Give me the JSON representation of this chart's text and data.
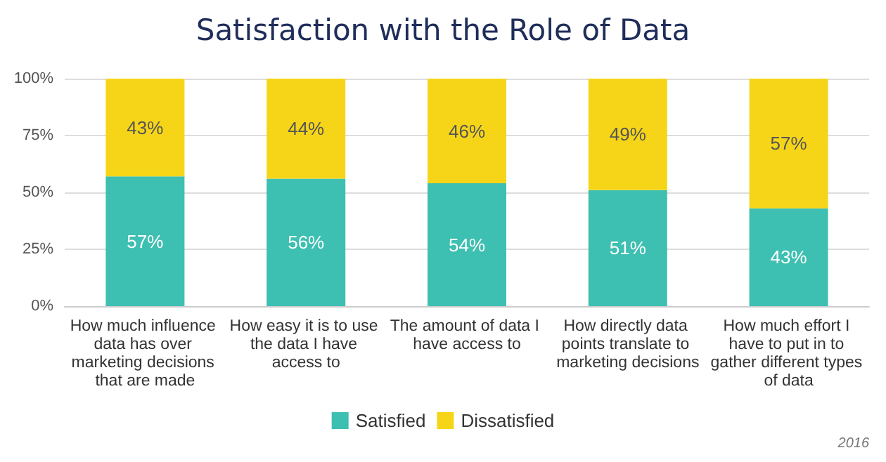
{
  "chart_data": {
    "type": "bar",
    "title": "Satisfaction with the Role of Data",
    "stacked": true,
    "categories": [
      "How much influence data has over marketing decisions that are made",
      "How easy it is to use the data I have access to",
      "The amount of data I have access to",
      "How directly data points translate to marketing decisions",
      "How much effort I have to put in to gather different types of data"
    ],
    "series": [
      {
        "name": "Satisfied",
        "color": "#3dbfb1",
        "values": [
          57,
          56,
          54,
          51,
          43
        ],
        "value_labels": [
          "57%",
          "56%",
          "54%",
          "51%",
          "43%"
        ]
      },
      {
        "name": "Dissatisfied",
        "color": "#f6d519",
        "values": [
          43,
          44,
          46,
          49,
          57
        ],
        "value_labels": [
          "43%",
          "44%",
          "46%",
          "49%",
          "57%"
        ]
      }
    ],
    "ylim": [
      0,
      100
    ],
    "yticks": [
      {
        "value": 0,
        "label": "0%"
      },
      {
        "value": 25,
        "label": "25%"
      },
      {
        "value": 50,
        "label": "50%"
      },
      {
        "value": 75,
        "label": "75%"
      },
      {
        "value": 100,
        "label": "100%"
      }
    ],
    "grid": "y",
    "legend": "bottom",
    "annotations": [
      "2016"
    ]
  }
}
